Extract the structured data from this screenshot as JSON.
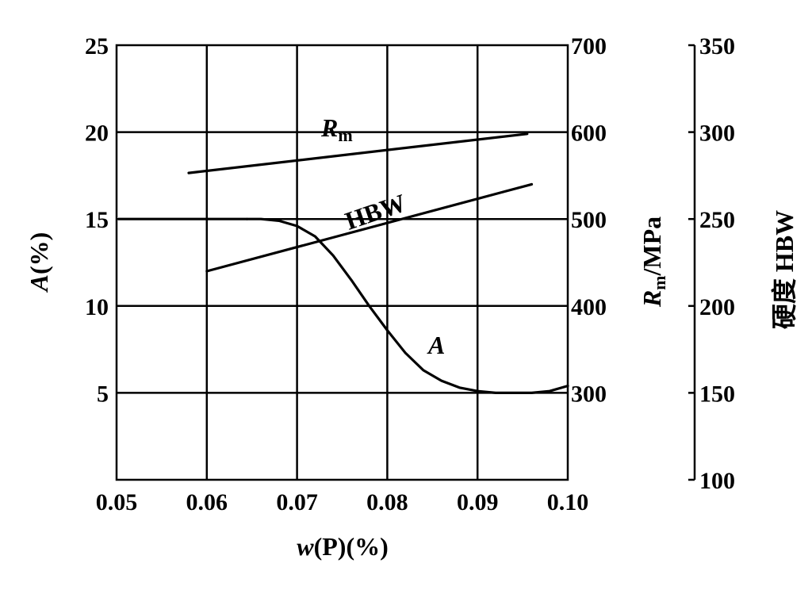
{
  "chart_data": {
    "type": "line",
    "xlabel_var": "w",
    "xlabel_rest": "(P)(%)",
    "ylabel_left_var": "A",
    "ylabel_left_rest": "(%)",
    "ylabel_mid_var": "R",
    "ylabel_mid_sub": "m",
    "ylabel_mid_rest": "/MPa",
    "ylabel_right": "硬度  HBW",
    "x_ticks": [
      "0.05",
      "0.06",
      "0.07",
      "0.08",
      "0.09",
      "0.10"
    ],
    "xlim": [
      0.05,
      0.1
    ],
    "y_left_ticks": [
      "5",
      "10",
      "15",
      "20",
      "25"
    ],
    "y_left_lim": [
      0,
      25
    ],
    "y_mid_ticks": [
      "300",
      "400",
      "500",
      "600",
      "700"
    ],
    "y_mid_lim": [
      200,
      700
    ],
    "y_right_ticks": [
      "100",
      "150",
      "200",
      "250",
      "300",
      "350"
    ],
    "y_right_lim": [
      100,
      350
    ],
    "grid": true,
    "series": [
      {
        "name": "A",
        "axis": "left",
        "x": [
          0.0645,
          0.066,
          0.068,
          0.07,
          0.072,
          0.074,
          0.076,
          0.078,
          0.08,
          0.082,
          0.084,
          0.086,
          0.088,
          0.09,
          0.092,
          0.094,
          0.096,
          0.098,
          0.1
        ],
        "y": [
          15.0,
          15.0,
          14.9,
          14.6,
          14.0,
          12.9,
          11.5,
          10.0,
          8.6,
          7.3,
          6.3,
          5.7,
          5.3,
          5.1,
          5.0,
          5.0,
          5.0,
          5.1,
          5.4
        ]
      },
      {
        "name": "Rm",
        "label_main": "R",
        "label_sub": "m",
        "axis": "mid",
        "x": [
          0.058,
          0.0955
        ],
        "y": [
          553,
          598
        ]
      },
      {
        "name": "HBW",
        "axis": "right",
        "x": [
          0.06,
          0.096
        ],
        "y": [
          220,
          270
        ]
      }
    ]
  }
}
